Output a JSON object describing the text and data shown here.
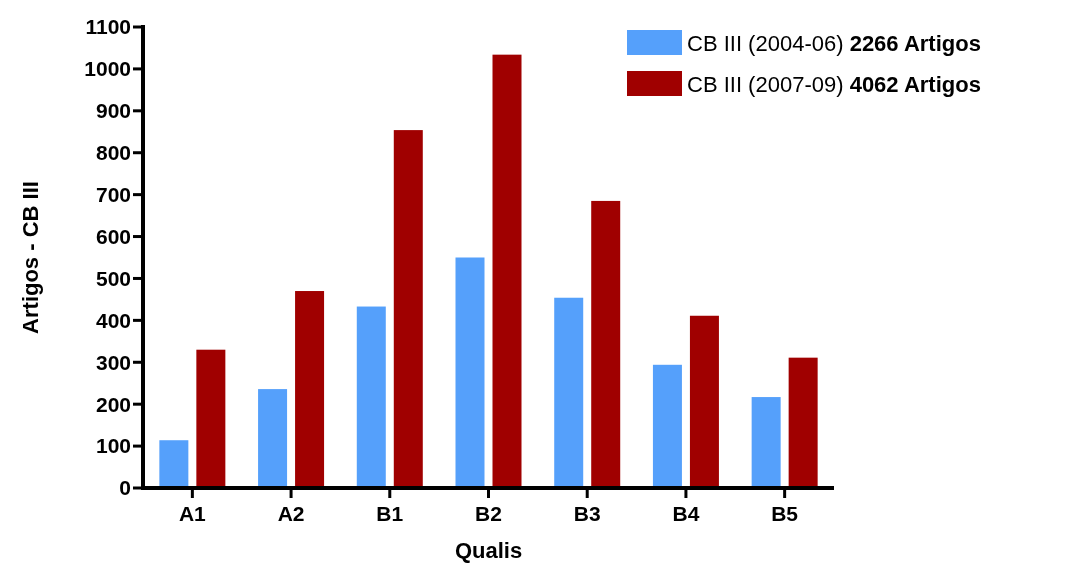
{
  "chart_data": {
    "type": "bar",
    "xlabel": "Qualis",
    "ylabel": "Artigos - CB III",
    "categories": [
      "A1",
      "A2",
      "B1",
      "B2",
      "B3",
      "B4",
      "B5"
    ],
    "series": [
      {
        "name": "CB III (2004-06) 2266 Artigos",
        "color": "#55a0fb",
        "values": [
          114,
          236,
          433,
          550,
          454,
          294,
          217
        ]
      },
      {
        "name": "CB III (2007-09) 4062 Artigos",
        "color": "#a00000",
        "values": [
          330,
          470,
          854,
          1034,
          685,
          411,
          311
        ]
      }
    ],
    "ylim": [
      0,
      1100
    ],
    "yticks": [
      0,
      100,
      200,
      300,
      400,
      500,
      600,
      700,
      800,
      900,
      1000,
      1100
    ],
    "grid": false,
    "legend": "top right"
  }
}
